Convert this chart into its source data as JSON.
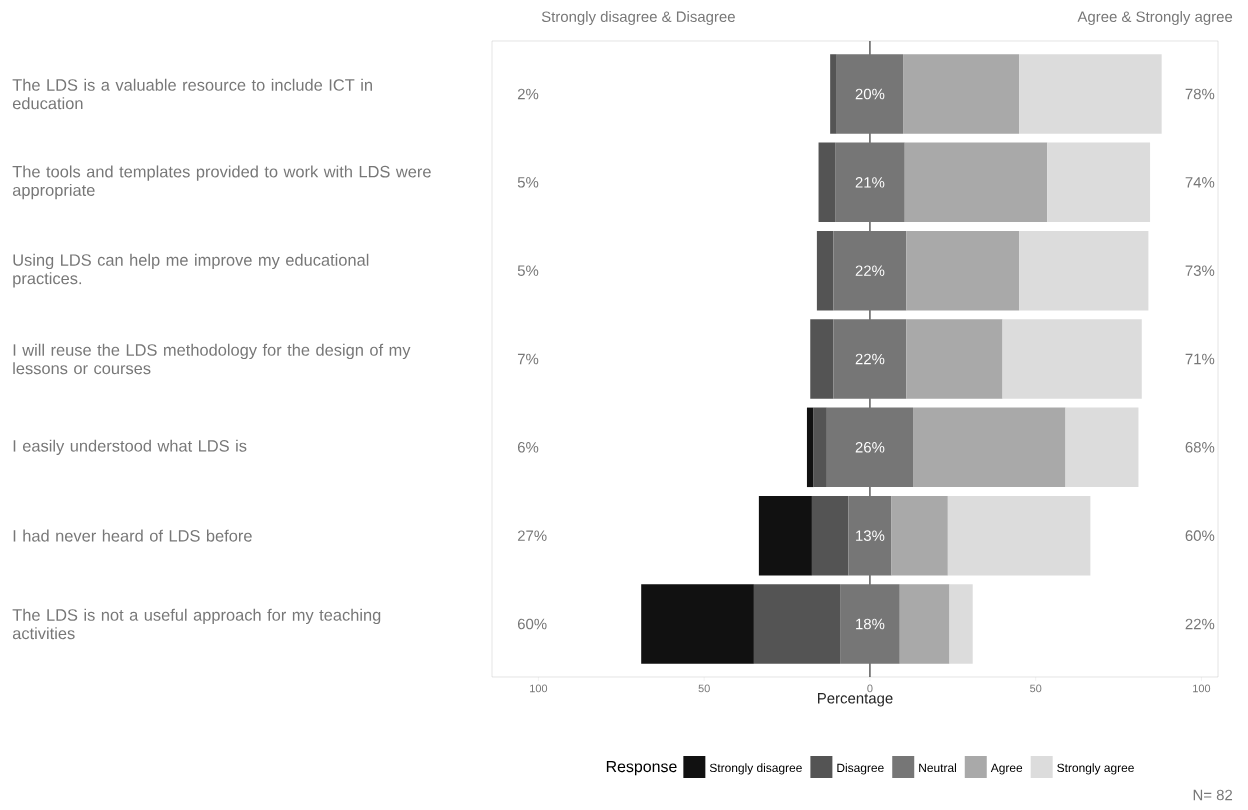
{
  "chart_data": {
    "type": "bar",
    "orientation": "horizontal",
    "categories": [
      "The LDS is a valuable resource to include ICT in education",
      "The tools and templates provided to work with LDS were appropriate",
      "Using LDS can help me improve my educational practices.",
      "I will reuse the LDS methodology for the design of my lessons or courses",
      "I easily understood what LDS is",
      "I had never heard of LDS before",
      "The LDS is not a useful approach for my teaching activities"
    ],
    "series": [
      {
        "name": "Strongly disagree",
        "color": "#111111",
        "values": [
          null,
          null,
          null,
          null,
          2,
          16,
          34
        ],
        "base": [
          null,
          null,
          null,
          null,
          -19,
          -33.5,
          -69
        ]
      },
      {
        "name": "Disagree",
        "color": "#545454",
        "values": [
          2,
          5,
          5,
          7,
          4,
          11,
          26
        ],
        "base": [
          -12,
          -15.5,
          -16,
          -18,
          -17,
          -17.5,
          -35
        ]
      },
      {
        "name": "Neutral",
        "color": "#767676",
        "values": [
          20,
          21,
          22,
          22,
          26,
          13,
          18
        ],
        "base": [
          -10,
          -10.5,
          -11,
          -11,
          -13,
          -6.5,
          -9
        ],
        "value_labels": [
          "20%",
          "21%",
          "22%",
          "22%",
          "26%",
          "13%",
          "18%"
        ]
      },
      {
        "name": "Agree",
        "color": "#a9a9a9",
        "values": [
          35,
          43,
          34,
          29,
          46,
          17,
          15
        ],
        "base": [
          10,
          10.5,
          11,
          11,
          13,
          6.5,
          9
        ]
      },
      {
        "name": "Strongly agree",
        "color": "#dcdcdc",
        "values": [
          43,
          31,
          39,
          42,
          22,
          43,
          7
        ],
        "base": [
          45,
          53.5,
          45,
          40,
          59,
          23.5,
          24
        ]
      }
    ],
    "xlim": [
      -114,
      105
    ],
    "xticks": [
      {
        "value": -100,
        "label": "100"
      },
      {
        "value": -50,
        "label": "50"
      },
      0,
      50,
      100
    ],
    "xlabel": "Percentage",
    "legend_title": "Response",
    "legend": "bottom",
    "grid": false,
    "ref_lines": [
      {
        "axis": "x",
        "value": 0,
        "color": "#333333"
      }
    ],
    "annotations": [
      "Strongly disagree & Disagree",
      "Agree & Strongly agree",
      "N= 82",
      "2%",
      "5%",
      "5%",
      "7%",
      "6%",
      "27%",
      "60%",
      "78%",
      "74%",
      "73%",
      "71%",
      "68%",
      "60%",
      "22%"
    ]
  }
}
